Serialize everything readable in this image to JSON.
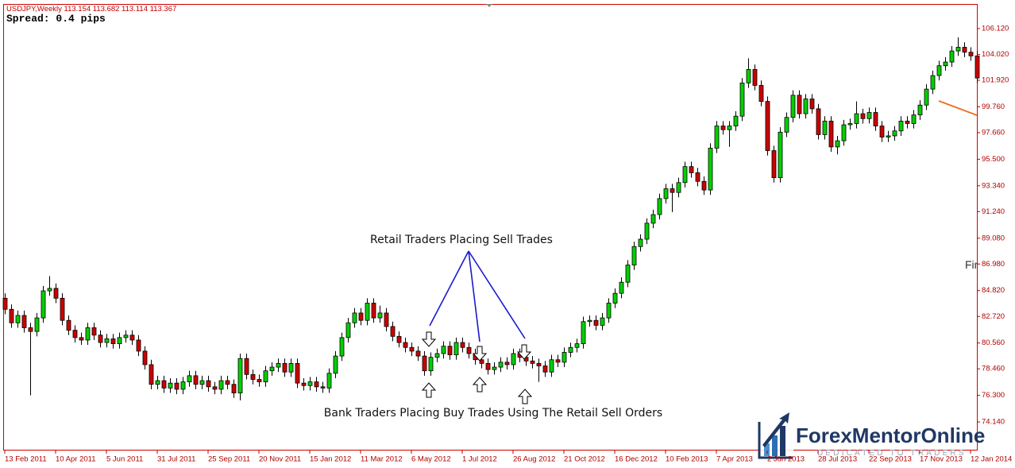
{
  "header": {
    "symbol_info": "USDJPY,Weekly 113.154 113.682 113.114 113.367",
    "spread": "Spread: 0.4 pips"
  },
  "annotations": [
    "Retail Traders Placing Sell Trades",
    "Bank Traders Placing Buy Trades Using The Retail Sell Orders",
    "Fir"
  ],
  "logo": {
    "name": "ForexMentorOnline",
    "tagline": "DEDICATED TO TRADERS"
  },
  "chart_data": {
    "type": "candlestick",
    "up_color": "#00d000",
    "down_color": "#cc0000",
    "ylim": [
      71.82,
      108.12
    ],
    "yticks": [
      {
        "value": 74.14,
        "label": "74.140"
      },
      {
        "value": 76.3,
        "label": "76.300"
      },
      {
        "value": 78.46,
        "label": "78.460"
      },
      {
        "value": 80.56,
        "label": "80.560"
      },
      {
        "value": 82.72,
        "label": "82.720"
      },
      {
        "value": 84.82,
        "label": "84.820"
      },
      {
        "value": 86.98,
        "label": "86.980"
      },
      {
        "value": 89.08,
        "label": "89.080"
      },
      {
        "value": 91.24,
        "label": "91.240"
      },
      {
        "value": 93.34,
        "label": "93.340"
      },
      {
        "value": 95.5,
        "label": "95.500"
      },
      {
        "value": 97.66,
        "label": "97.660"
      },
      {
        "value": 99.76,
        "label": "99.760"
      },
      {
        "value": 101.92,
        "label": "101.920"
      },
      {
        "value": 104.02,
        "label": "104.020"
      },
      {
        "value": 106.12,
        "label": "106.120"
      }
    ],
    "categories": [
      "13 Feb 2011",
      null,
      null,
      null,
      null,
      null,
      null,
      null,
      "10 Apr 2011",
      null,
      null,
      null,
      null,
      null,
      null,
      null,
      "5 Jun 2011",
      null,
      null,
      null,
      null,
      null,
      null,
      null,
      "31 Jul 2011",
      null,
      null,
      null,
      null,
      null,
      null,
      null,
      "25 Sep 2011",
      null,
      null,
      null,
      null,
      null,
      null,
      null,
      "20 Nov 2011",
      null,
      null,
      null,
      null,
      null,
      null,
      null,
      "15 Jan 2012",
      null,
      null,
      null,
      null,
      null,
      null,
      null,
      "11 Mar 2012",
      null,
      null,
      null,
      null,
      null,
      null,
      null,
      "6 May 2012",
      null,
      null,
      null,
      null,
      null,
      null,
      null,
      "1 Jul 2012",
      null,
      null,
      null,
      null,
      null,
      null,
      null,
      "26 Aug 2012",
      null,
      null,
      null,
      null,
      null,
      null,
      null,
      "21 Oct 2012",
      null,
      null,
      null,
      null,
      null,
      null,
      null,
      "16 Dec 2012",
      null,
      null,
      null,
      null,
      null,
      null,
      null,
      "10 Feb 2013",
      null,
      null,
      null,
      null,
      null,
      null,
      null,
      "7 Apr 2013",
      null,
      null,
      null,
      null,
      null,
      null,
      null,
      "2 Jun 2013",
      null,
      null,
      null,
      null,
      null,
      null,
      null,
      "28 Jul 2013",
      null,
      null,
      null,
      null,
      null,
      null,
      null,
      "22 Sep 2013",
      null,
      null,
      null,
      null,
      null,
      null,
      null,
      "17 Nov 2013",
      null,
      null,
      null,
      null,
      null,
      null,
      null,
      "12 Jan 2014",
      null
    ],
    "ohlc": [
      [
        84.2,
        84.6,
        82.9,
        83.3
      ],
      [
        83.3,
        83.7,
        81.8,
        82.2
      ],
      [
        82.2,
        83.2,
        81.8,
        82.8
      ],
      [
        82.8,
        83.2,
        81.4,
        81.8
      ],
      [
        81.8,
        82.2,
        76.3,
        81.5
      ],
      [
        81.5,
        83.0,
        81.1,
        82.6
      ],
      [
        82.6,
        85.2,
        82.2,
        84.8
      ],
      [
        84.8,
        86.0,
        84.4,
        85.0
      ],
      [
        85.0,
        85.4,
        83.8,
        84.2
      ],
      [
        84.2,
        84.6,
        82.0,
        82.4
      ],
      [
        82.4,
        82.8,
        81.2,
        81.6
      ],
      [
        81.6,
        82.0,
        80.6,
        81.0
      ],
      [
        81.0,
        81.4,
        80.4,
        80.8
      ],
      [
        80.8,
        82.2,
        80.4,
        81.8
      ],
      [
        81.8,
        82.2,
        80.8,
        81.2
      ],
      [
        81.2,
        81.6,
        80.2,
        80.6
      ],
      [
        80.6,
        81.3,
        80.2,
        80.9
      ],
      [
        80.9,
        81.3,
        80.1,
        80.5
      ],
      [
        80.5,
        81.4,
        80.1,
        81.0
      ],
      [
        81.0,
        81.6,
        80.6,
        81.2
      ],
      [
        81.2,
        81.6,
        80.4,
        80.8
      ],
      [
        80.8,
        81.2,
        79.5,
        79.9
      ],
      [
        79.9,
        80.3,
        78.4,
        78.8
      ],
      [
        78.8,
        79.2,
        76.8,
        77.2
      ],
      [
        77.2,
        77.9,
        76.8,
        77.5
      ],
      [
        77.5,
        77.9,
        76.5,
        76.9
      ],
      [
        76.9,
        77.7,
        76.5,
        77.3
      ],
      [
        77.3,
        77.7,
        76.4,
        76.8
      ],
      [
        76.8,
        77.8,
        76.4,
        77.4
      ],
      [
        77.4,
        78.3,
        77.0,
        77.9
      ],
      [
        77.9,
        78.3,
        76.8,
        77.2
      ],
      [
        77.2,
        77.9,
        76.8,
        77.5
      ],
      [
        77.5,
        77.9,
        76.6,
        77.0
      ],
      [
        77.0,
        77.4,
        76.4,
        76.8
      ],
      [
        76.8,
        77.9,
        76.4,
        77.5
      ],
      [
        77.5,
        77.9,
        76.8,
        77.2
      ],
      [
        77.2,
        77.6,
        76.1,
        76.5
      ],
      [
        76.5,
        79.7,
        75.9,
        79.3
      ],
      [
        79.3,
        79.7,
        77.6,
        78.0
      ],
      [
        78.0,
        78.4,
        77.2,
        77.6
      ],
      [
        77.6,
        78.0,
        77.0,
        77.4
      ],
      [
        77.4,
        78.7,
        77.0,
        78.3
      ],
      [
        78.3,
        79.0,
        77.9,
        78.6
      ],
      [
        78.6,
        79.3,
        78.2,
        78.9
      ],
      [
        78.9,
        79.3,
        77.8,
        78.2
      ],
      [
        78.2,
        79.3,
        77.8,
        78.9
      ],
      [
        78.9,
        79.3,
        76.9,
        77.3
      ],
      [
        77.3,
        77.7,
        76.7,
        77.1
      ],
      [
        77.1,
        77.8,
        76.7,
        77.4
      ],
      [
        77.4,
        77.8,
        76.6,
        77.0
      ],
      [
        77.0,
        77.4,
        76.5,
        76.9
      ],
      [
        76.9,
        78.5,
        76.5,
        78.1
      ],
      [
        78.1,
        79.9,
        77.7,
        79.5
      ],
      [
        79.5,
        81.4,
        79.1,
        81.0
      ],
      [
        81.0,
        82.6,
        80.6,
        82.2
      ],
      [
        82.2,
        83.4,
        81.8,
        83.0
      ],
      [
        83.0,
        83.4,
        82.0,
        82.4
      ],
      [
        82.4,
        84.2,
        82.0,
        83.8
      ],
      [
        83.8,
        84.2,
        82.2,
        82.6
      ],
      [
        82.6,
        83.6,
        82.2,
        83.0
      ],
      [
        83.0,
        83.4,
        81.5,
        81.9
      ],
      [
        81.9,
        82.3,
        80.7,
        81.1
      ],
      [
        81.1,
        81.5,
        80.2,
        80.6
      ],
      [
        80.6,
        81.0,
        79.8,
        80.2
      ],
      [
        80.2,
        80.6,
        79.5,
        79.9
      ],
      [
        79.9,
        80.3,
        79.1,
        79.5
      ],
      [
        79.5,
        79.9,
        77.9,
        78.3
      ],
      [
        78.3,
        79.8,
        77.9,
        79.4
      ],
      [
        79.4,
        80.1,
        79.0,
        79.7
      ],
      [
        79.7,
        80.7,
        79.3,
        80.3
      ],
      [
        80.3,
        80.7,
        79.2,
        79.6
      ],
      [
        79.6,
        81.0,
        79.2,
        80.6
      ],
      [
        80.6,
        81.0,
        79.8,
        80.2
      ],
      [
        80.2,
        80.6,
        79.3,
        79.7
      ],
      [
        79.7,
        80.1,
        78.8,
        79.2
      ],
      [
        79.2,
        79.6,
        78.5,
        78.9
      ],
      [
        78.9,
        79.3,
        78.0,
        78.4
      ],
      [
        78.4,
        79.0,
        78.0,
        78.6
      ],
      [
        78.6,
        79.4,
        78.2,
        79.0
      ],
      [
        79.0,
        79.4,
        78.4,
        78.8
      ],
      [
        78.8,
        80.1,
        78.4,
        79.7
      ],
      [
        79.7,
        80.1,
        79.0,
        79.4
      ],
      [
        79.4,
        79.8,
        78.7,
        79.1
      ],
      [
        79.1,
        79.5,
        78.5,
        78.9
      ],
      [
        78.9,
        79.3,
        77.4,
        78.7
      ],
      [
        78.7,
        79.1,
        77.8,
        78.2
      ],
      [
        78.2,
        79.6,
        77.8,
        79.2
      ],
      [
        79.2,
        79.6,
        78.6,
        79.0
      ],
      [
        79.0,
        80.2,
        78.6,
        79.8
      ],
      [
        79.8,
        80.6,
        79.4,
        80.2
      ],
      [
        80.2,
        80.9,
        79.8,
        80.5
      ],
      [
        80.5,
        82.7,
        80.1,
        82.3
      ],
      [
        82.3,
        82.8,
        81.9,
        82.4
      ],
      [
        82.4,
        82.8,
        81.6,
        82.0
      ],
      [
        82.0,
        83.0,
        81.6,
        82.6
      ],
      [
        82.6,
        84.2,
        82.2,
        83.8
      ],
      [
        83.8,
        85.0,
        83.4,
        84.6
      ],
      [
        84.6,
        85.9,
        84.2,
        85.5
      ],
      [
        85.5,
        87.3,
        85.1,
        86.9
      ],
      [
        86.9,
        88.8,
        86.5,
        88.4
      ],
      [
        88.4,
        89.4,
        88.0,
        89.0
      ],
      [
        89.0,
        90.7,
        88.6,
        90.3
      ],
      [
        90.3,
        91.4,
        89.9,
        91.0
      ],
      [
        91.0,
        92.7,
        90.6,
        92.3
      ],
      [
        92.3,
        93.5,
        91.9,
        93.1
      ],
      [
        93.1,
        93.5,
        91.2,
        92.8
      ],
      [
        92.8,
        94.0,
        92.4,
        93.6
      ],
      [
        93.6,
        95.3,
        93.2,
        94.9
      ],
      [
        94.9,
        95.3,
        94.0,
        94.4
      ],
      [
        94.4,
        94.8,
        93.3,
        93.7
      ],
      [
        93.7,
        94.1,
        92.6,
        93.0
      ],
      [
        93.0,
        96.8,
        92.6,
        96.4
      ],
      [
        96.4,
        98.6,
        96.0,
        98.2
      ],
      [
        98.2,
        98.6,
        97.5,
        97.9
      ],
      [
        97.9,
        98.6,
        96.5,
        98.2
      ],
      [
        98.2,
        99.4,
        97.8,
        99.0
      ],
      [
        99.0,
        102.1,
        98.6,
        101.7
      ],
      [
        101.7,
        103.7,
        101.3,
        102.8
      ],
      [
        102.8,
        103.2,
        101.1,
        101.5
      ],
      [
        101.5,
        101.9,
        99.8,
        100.2
      ],
      [
        100.2,
        100.6,
        95.8,
        96.2
      ],
      [
        96.2,
        96.6,
        93.6,
        94.0
      ],
      [
        94.0,
        98.1,
        93.6,
        97.7
      ],
      [
        97.7,
        99.3,
        97.3,
        98.9
      ],
      [
        98.9,
        101.1,
        98.5,
        100.7
      ],
      [
        100.7,
        101.1,
        98.8,
        99.2
      ],
      [
        99.2,
        100.8,
        98.8,
        100.4
      ],
      [
        100.4,
        100.8,
        99.2,
        99.6
      ],
      [
        99.6,
        100.0,
        97.1,
        97.5
      ],
      [
        97.5,
        99.0,
        97.1,
        98.6
      ],
      [
        98.6,
        99.0,
        96.1,
        96.5
      ],
      [
        96.5,
        97.4,
        95.9,
        97.0
      ],
      [
        97.0,
        98.7,
        96.6,
        98.3
      ],
      [
        98.3,
        98.8,
        97.9,
        98.4
      ],
      [
        98.4,
        100.2,
        98.0,
        99.2
      ],
      [
        99.2,
        99.6,
        98.4,
        98.8
      ],
      [
        98.8,
        99.7,
        98.4,
        99.3
      ],
      [
        99.3,
        99.7,
        97.8,
        98.2
      ],
      [
        98.2,
        98.6,
        96.9,
        97.3
      ],
      [
        97.3,
        97.8,
        96.9,
        97.4
      ],
      [
        97.4,
        98.2,
        97.0,
        97.8
      ],
      [
        97.8,
        99.0,
        97.4,
        98.6
      ],
      [
        98.6,
        99.0,
        98.0,
        98.4
      ],
      [
        98.4,
        99.5,
        98.0,
        99.1
      ],
      [
        99.1,
        100.3,
        98.7,
        99.9
      ],
      [
        99.9,
        101.6,
        99.5,
        101.2
      ],
      [
        101.2,
        102.7,
        100.8,
        102.3
      ],
      [
        102.3,
        103.5,
        101.9,
        103.1
      ],
      [
        103.1,
        103.8,
        102.7,
        103.4
      ],
      [
        103.4,
        104.7,
        103.0,
        104.3
      ],
      [
        104.3,
        105.4,
        103.9,
        104.6
      ],
      [
        104.6,
        105.0,
        103.8,
        104.2
      ],
      [
        104.2,
        104.6,
        103.5,
        103.9
      ],
      [
        103.9,
        104.3,
        101.7,
        102.1
      ]
    ]
  }
}
